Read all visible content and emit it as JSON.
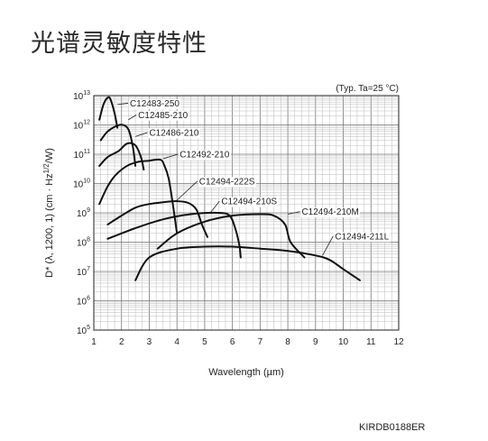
{
  "page": {
    "title": "光谱灵敏度特性",
    "doc_code": "KIRDB0188ER"
  },
  "chart_data": {
    "type": "line",
    "title": "",
    "note": "(Typ. Ta=25 °C)",
    "xlabel": "Wavelength (µm)",
    "ylabel": "D* (λ, 1200, 1) (cm · Hz1/2/W)",
    "xlim": [
      1,
      12
    ],
    "ylim": [
      100000,
      10000000000000
    ],
    "y_scale": "log",
    "x_ticks": [
      1,
      2,
      3,
      4,
      5,
      6,
      7,
      8,
      9,
      10,
      11,
      12
    ],
    "y_tick_exponents": [
      5,
      6,
      7,
      8,
      9,
      10,
      11,
      12,
      13
    ],
    "grid": true,
    "series": [
      {
        "name": "C12483-250",
        "label_at": [
          2.3,
          5500000000000.0
        ],
        "leader_to": [
          1.85,
          5000000000000.0
        ],
        "points": [
          [
            1.2,
            1500000000000.0
          ],
          [
            1.35,
            5000000000000.0
          ],
          [
            1.5,
            8500000000000.0
          ],
          [
            1.6,
            7500000000000.0
          ],
          [
            1.75,
            2500000000000.0
          ],
          [
            1.85,
            800000000000.0
          ]
        ]
      },
      {
        "name": "C12485-210",
        "label_at": [
          2.6,
          2200000000000.0
        ],
        "leader_to": [
          2.25,
          1500000000000.0
        ],
        "points": [
          [
            1.25,
            300000000000.0
          ],
          [
            1.5,
            600000000000.0
          ],
          [
            1.85,
            950000000000.0
          ],
          [
            2.05,
            1000000000000.0
          ],
          [
            2.25,
            700000000000.0
          ],
          [
            2.4,
            200000000000.0
          ],
          [
            2.5,
            40000000000.0
          ]
        ]
      },
      {
        "name": "C12486-210",
        "label_at": [
          3.0,
          550000000000.0
        ],
        "leader_to": [
          2.5,
          400000000000.0
        ],
        "points": [
          [
            1.2,
            40000000000.0
          ],
          [
            1.5,
            80000000000.0
          ],
          [
            1.9,
            130000000000.0
          ],
          [
            2.2,
            230000000000.0
          ],
          [
            2.5,
            200000000000.0
          ],
          [
            2.7,
            80000000000.0
          ],
          [
            2.8,
            30000000000.0
          ]
        ]
      },
      {
        "name": "C12492-210",
        "label_at": [
          4.1,
          100000000000.0
        ],
        "leader_to": [
          3.5,
          70000000000.0
        ],
        "points": [
          [
            1.2,
            2000000000.0
          ],
          [
            1.5,
            8000000000.0
          ],
          [
            1.8,
            20000000000.0
          ],
          [
            2.2,
            40000000000.0
          ],
          [
            2.6,
            55000000000.0
          ],
          [
            3.0,
            60000000000.0
          ],
          [
            3.4,
            65000000000.0
          ],
          [
            3.55,
            40000000000.0
          ],
          [
            3.7,
            15000000000.0
          ],
          [
            3.85,
            2000000000.0
          ],
          [
            4.0,
            200000000.0
          ]
        ]
      },
      {
        "name": "C12494-222S",
        "label_at": [
          4.8,
          12000000000.0
        ],
        "leader_to": [
          4.0,
          2700000000.0
        ],
        "points": [
          [
            1.5,
            400000000.0
          ],
          [
            2.0,
            800000000.0
          ],
          [
            2.5,
            1500000000.0
          ],
          [
            3.0,
            2000000000.0
          ],
          [
            3.5,
            2300000000.0
          ],
          [
            4.0,
            2500000000.0
          ],
          [
            4.4,
            2200000000.0
          ],
          [
            4.7,
            1300000000.0
          ],
          [
            4.9,
            400000000.0
          ],
          [
            5.1,
            150000000.0
          ]
        ]
      },
      {
        "name": "C12494-210S",
        "label_at": [
          5.6,
          2500000000.0
        ],
        "leader_to": [
          5.2,
          1000000000.0
        ],
        "points": [
          [
            1.5,
            130000000.0
          ],
          [
            2.5,
            300000000.0
          ],
          [
            3.5,
            600000000.0
          ],
          [
            4.5,
            900000000.0
          ],
          [
            5.5,
            1000000000.0
          ],
          [
            5.9,
            800000000.0
          ],
          [
            6.1,
            300000000.0
          ],
          [
            6.25,
            80000000.0
          ],
          [
            6.3,
            30000000.0
          ]
        ]
      },
      {
        "name": "C12494-210M",
        "label_at": [
          8.5,
          1100000000.0
        ],
        "leader_to": [
          8.0,
          900000000.0
        ],
        "points": [
          [
            3.3,
            60000000.0
          ],
          [
            4.0,
            200000000.0
          ],
          [
            5.0,
            500000000.0
          ],
          [
            6.0,
            800000000.0
          ],
          [
            7.0,
            900000000.0
          ],
          [
            7.5,
            800000000.0
          ],
          [
            7.9,
            400000000.0
          ],
          [
            8.1,
            100000000.0
          ],
          [
            8.6,
            30000000.0
          ]
        ]
      },
      {
        "name": "C12494-211L",
        "label_at": [
          9.7,
          160000000.0
        ],
        "leader_to": [
          9.25,
          35000000.0
        ],
        "points": [
          [
            2.5,
            5000000.0
          ],
          [
            3.0,
            30000000.0
          ],
          [
            4.0,
            60000000.0
          ],
          [
            5.0,
            70000000.0
          ],
          [
            6.0,
            70000000.0
          ],
          [
            7.0,
            60000000.0
          ],
          [
            8.0,
            50000000.0
          ],
          [
            9.0,
            35000000.0
          ],
          [
            9.5,
            25000000.0
          ],
          [
            10.0,
            12000000.0
          ],
          [
            10.6,
            5000000.0
          ]
        ]
      }
    ]
  }
}
